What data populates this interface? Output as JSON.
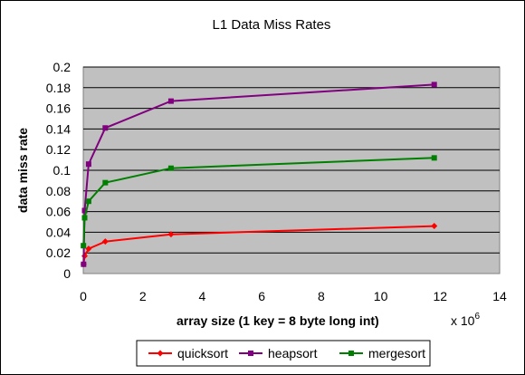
{
  "chart_data": {
    "type": "line",
    "title": "L1 Data Miss Rates",
    "xlabel": "array size (1 key = 8 byte long int)",
    "x_multiplier": "x 10",
    "x_multiplier_exp": "6",
    "ylabel": "data miss rate",
    "xlim": [
      0,
      14
    ],
    "ylim": [
      0,
      0.2
    ],
    "x_ticks": [
      "0",
      "2",
      "4",
      "6",
      "8",
      "10",
      "12",
      "14"
    ],
    "y_ticks": [
      "0",
      "0.02",
      "0.04",
      "0.06",
      "0.08",
      "0.1",
      "0.12",
      "0.14",
      "0.16",
      "0.18",
      "0.2"
    ],
    "grid": true,
    "legend_position": "bottom",
    "series": [
      {
        "name": "quicksort",
        "color": "#ff0000",
        "marker": "diamond",
        "points": [
          [
            0.01,
            0.009
          ],
          [
            0.046,
            0.017
          ],
          [
            0.18,
            0.024
          ],
          [
            0.74,
            0.031
          ],
          [
            2.95,
            0.038
          ],
          [
            11.8,
            0.046
          ]
        ]
      },
      {
        "name": "heapsort",
        "color": "#800080",
        "marker": "square",
        "points": [
          [
            0.01,
            0.009
          ],
          [
            0.046,
            0.061
          ],
          [
            0.18,
            0.106
          ],
          [
            0.74,
            0.141
          ],
          [
            2.95,
            0.167
          ],
          [
            11.8,
            0.183
          ]
        ]
      },
      {
        "name": "mergesort",
        "color": "#008000",
        "marker": "square",
        "points": [
          [
            0.005,
            0.027
          ],
          [
            0.046,
            0.054
          ],
          [
            0.18,
            0.07
          ],
          [
            0.74,
            0.088
          ],
          [
            2.95,
            0.102
          ],
          [
            11.8,
            0.112
          ]
        ]
      }
    ]
  }
}
